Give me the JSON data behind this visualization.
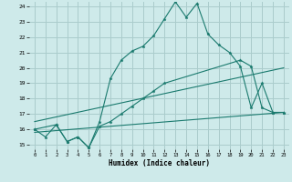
{
  "xlabel": "Humidex (Indice chaleur)",
  "bg_color": "#ceeaea",
  "grid_color": "#aacccc",
  "line_color": "#1a7a6e",
  "xlim": [
    -0.5,
    23.5
  ],
  "ylim": [
    14.7,
    24.3
  ],
  "xticks": [
    0,
    1,
    2,
    3,
    4,
    5,
    6,
    7,
    8,
    9,
    10,
    11,
    12,
    13,
    14,
    15,
    16,
    17,
    18,
    19,
    20,
    21,
    22,
    23
  ],
  "yticks": [
    15,
    16,
    17,
    18,
    19,
    20,
    21,
    22,
    23,
    24
  ],
  "series1_x": [
    0,
    1,
    2,
    3,
    4,
    5,
    6,
    7,
    8,
    9,
    10,
    11,
    12,
    13,
    14,
    15,
    16,
    17,
    18,
    19,
    20,
    21,
    22,
    23
  ],
  "series1_y": [
    16.0,
    15.5,
    16.3,
    15.2,
    15.5,
    14.8,
    16.5,
    19.3,
    20.5,
    21.1,
    21.4,
    22.1,
    23.2,
    24.3,
    23.3,
    24.2,
    22.2,
    21.5,
    21.0,
    20.1,
    17.4,
    19.0,
    17.1,
    17.1
  ],
  "series2_x": [
    0,
    2,
    3,
    4,
    5,
    6,
    7,
    8,
    9,
    10,
    11,
    12,
    19,
    20,
    21,
    22,
    23
  ],
  "series2_y": [
    16.0,
    16.3,
    15.2,
    15.5,
    14.8,
    16.2,
    16.5,
    17.0,
    17.5,
    18.0,
    18.5,
    19.0,
    20.5,
    20.1,
    17.4,
    17.1,
    17.1
  ],
  "series3_x": [
    0,
    23
  ],
  "series3_y": [
    16.5,
    20.0
  ],
  "series4_x": [
    0,
    23
  ],
  "series4_y": [
    15.8,
    17.1
  ]
}
